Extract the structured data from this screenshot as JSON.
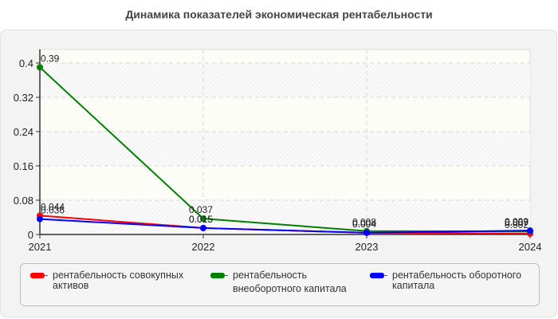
{
  "chart_data": {
    "type": "line",
    "title": "Динамика показателей экономическая рентабельности",
    "xlabel": "",
    "ylabel": "",
    "categories": [
      "2021",
      "2022",
      "2023",
      "2024"
    ],
    "yticks": [
      "0",
      "0.08",
      "0.16",
      "0.24",
      "0.32",
      "0.4"
    ],
    "ylim": [
      0,
      0.4
    ],
    "grid": true,
    "legend_position": "bottom",
    "series": [
      {
        "name": "рентабельность совокупных активов",
        "color": "#ff0000",
        "values": [
          0.044,
          0.015,
          0.004,
          0.002
        ],
        "labels": [
          "0.044",
          "0.015",
          "0.004",
          "0.002"
        ]
      },
      {
        "name": "рентабельность внеоборотного капитала",
        "color": "#008000",
        "values": [
          0.39,
          0.037,
          0.008,
          0.007
        ],
        "labels": [
          "0.39",
          "0.037",
          "0.008",
          "0.007"
        ]
      },
      {
        "name": "рентабельность оборотного капитала",
        "color": "#0000ff",
        "values": [
          0.036,
          0.015,
          0.004,
          0.009
        ],
        "labels": [
          "0.036",
          "0.015",
          "0.004",
          "0.009"
        ]
      }
    ]
  },
  "legend": {
    "items": [
      {
        "line1": "рентабельность совокупных",
        "line2": "активов",
        "color": "#ff0000"
      },
      {
        "line1": "рентабельность",
        "line2": "внеоборотного капитала",
        "color": "#008000"
      },
      {
        "line1": "рентабельность оборотного",
        "line2": "капитала",
        "color": "#0000ff"
      }
    ]
  }
}
